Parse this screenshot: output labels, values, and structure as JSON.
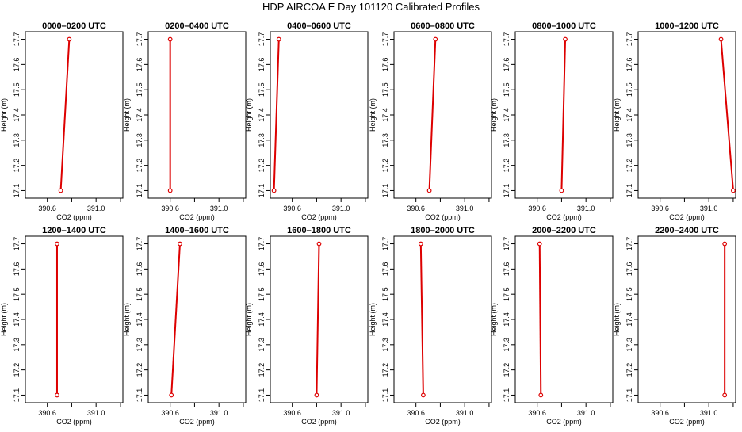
{
  "figure": {
    "title": "HDP AIRCOA E  Day 101120  Calibrated Profiles"
  },
  "colors": {
    "line": "#dd0000",
    "axis": "#000000",
    "background": "#ffffff"
  },
  "chart_data": [
    {
      "type": "line",
      "title": "0000–0200 UTC",
      "xlabel": "CO2 (ppm)",
      "ylabel": "Height (m)",
      "x_ticks": [
        "390.6",
        "391.0"
      ],
      "y_ticks": [
        "17.1",
        "17.2",
        "17.3",
        "17.4",
        "17.5",
        "17.6",
        "17.7"
      ],
      "xlim": [
        390.42,
        391.22
      ],
      "ylim": [
        17.07,
        17.73
      ],
      "grid": false,
      "x": [
        390.71,
        390.78
      ],
      "y": [
        17.1,
        17.7
      ]
    },
    {
      "type": "line",
      "title": "0200–0400 UTC",
      "xlabel": "CO2 (ppm)",
      "ylabel": "Height (m)",
      "x_ticks": [
        "390.6",
        "391.0"
      ],
      "y_ticks": [
        "17.1",
        "17.2",
        "17.3",
        "17.4",
        "17.5",
        "17.6",
        "17.7"
      ],
      "xlim": [
        390.42,
        391.22
      ],
      "ylim": [
        17.07,
        17.73
      ],
      "grid": false,
      "x": [
        390.6,
        390.6
      ],
      "y": [
        17.1,
        17.7
      ]
    },
    {
      "type": "line",
      "title": "0400–0600 UTC",
      "xlabel": "CO2 (ppm)",
      "ylabel": "Height (m)",
      "x_ticks": [
        "390.6",
        "391.0"
      ],
      "y_ticks": [
        "17.1",
        "17.2",
        "17.3",
        "17.4",
        "17.5",
        "17.6",
        "17.7"
      ],
      "xlim": [
        390.42,
        391.22
      ],
      "ylim": [
        17.07,
        17.73
      ],
      "grid": false,
      "x": [
        390.45,
        390.49
      ],
      "y": [
        17.1,
        17.7
      ]
    },
    {
      "type": "line",
      "title": "0600–0800 UTC",
      "xlabel": "CO2 (ppm)",
      "ylabel": "Height (m)",
      "x_ticks": [
        "390.6",
        "391.0"
      ],
      "y_ticks": [
        "17.1",
        "17.2",
        "17.3",
        "17.4",
        "17.5",
        "17.6",
        "17.7"
      ],
      "xlim": [
        390.42,
        391.22
      ],
      "ylim": [
        17.07,
        17.73
      ],
      "grid": false,
      "x": [
        390.71,
        390.76
      ],
      "y": [
        17.1,
        17.7
      ]
    },
    {
      "type": "line",
      "title": "0800–1000 UTC",
      "xlabel": "CO2 (ppm)",
      "ylabel": "Height (m)",
      "x_ticks": [
        "390.6",
        "391.0"
      ],
      "y_ticks": [
        "17.1",
        "17.2",
        "17.3",
        "17.4",
        "17.5",
        "17.6",
        "17.7"
      ],
      "xlim": [
        390.42,
        391.22
      ],
      "ylim": [
        17.07,
        17.73
      ],
      "grid": false,
      "x": [
        390.8,
        390.83
      ],
      "y": [
        17.1,
        17.7
      ]
    },
    {
      "type": "line",
      "title": "1000–1200 UTC",
      "xlabel": "CO2 (ppm)",
      "ylabel": "Height (m)",
      "x_ticks": [
        "390.6",
        "391.0"
      ],
      "y_ticks": [
        "17.1",
        "17.2",
        "17.3",
        "17.4",
        "17.5",
        "17.6",
        "17.7"
      ],
      "xlim": [
        390.42,
        391.22
      ],
      "ylim": [
        17.07,
        17.73
      ],
      "grid": false,
      "x": [
        391.2,
        391.1
      ],
      "y": [
        17.1,
        17.7
      ]
    },
    {
      "type": "line",
      "title": "1200–1400 UTC",
      "xlabel": "CO2 (ppm)",
      "ylabel": "Height (m)",
      "x_ticks": [
        "390.6",
        "391.0"
      ],
      "y_ticks": [
        "17.1",
        "17.2",
        "17.3",
        "17.4",
        "17.5",
        "17.6",
        "17.7"
      ],
      "xlim": [
        390.42,
        391.22
      ],
      "ylim": [
        17.07,
        17.73
      ],
      "grid": false,
      "x": [
        390.68,
        390.68
      ],
      "y": [
        17.1,
        17.7
      ]
    },
    {
      "type": "line",
      "title": "1400–1600 UTC",
      "xlabel": "CO2 (ppm)",
      "ylabel": "Height (m)",
      "x_ticks": [
        "390.6",
        "391.0"
      ],
      "y_ticks": [
        "17.1",
        "17.2",
        "17.3",
        "17.4",
        "17.5",
        "17.6",
        "17.7"
      ],
      "xlim": [
        390.42,
        391.22
      ],
      "ylim": [
        17.07,
        17.73
      ],
      "grid": false,
      "x": [
        390.61,
        390.68
      ],
      "y": [
        17.1,
        17.7
      ]
    },
    {
      "type": "line",
      "title": "1600–1800 UTC",
      "xlabel": "CO2 (ppm)",
      "ylabel": "Height (m)",
      "x_ticks": [
        "390.6",
        "391.0"
      ],
      "y_ticks": [
        "17.1",
        "17.2",
        "17.3",
        "17.4",
        "17.5",
        "17.6",
        "17.7"
      ],
      "xlim": [
        390.42,
        391.22
      ],
      "ylim": [
        17.07,
        17.73
      ],
      "grid": false,
      "x": [
        390.8,
        390.82
      ],
      "y": [
        17.1,
        17.7
      ]
    },
    {
      "type": "line",
      "title": "1800–2000 UTC",
      "xlabel": "CO2 (ppm)",
      "ylabel": "Height (m)",
      "x_ticks": [
        "390.6",
        "391.0"
      ],
      "y_ticks": [
        "17.1",
        "17.2",
        "17.3",
        "17.4",
        "17.5",
        "17.6",
        "17.7"
      ],
      "xlim": [
        390.42,
        391.22
      ],
      "ylim": [
        17.07,
        17.73
      ],
      "grid": false,
      "x": [
        390.66,
        390.64
      ],
      "y": [
        17.1,
        17.7
      ]
    },
    {
      "type": "line",
      "title": "2000–2200 UTC",
      "xlabel": "CO2 (ppm)",
      "ylabel": "Height (m)",
      "x_ticks": [
        "390.6",
        "391.0"
      ],
      "y_ticks": [
        "17.1",
        "17.2",
        "17.3",
        "17.4",
        "17.5",
        "17.6",
        "17.7"
      ],
      "xlim": [
        390.42,
        391.22
      ],
      "ylim": [
        17.07,
        17.73
      ],
      "grid": false,
      "x": [
        390.63,
        390.62
      ],
      "y": [
        17.1,
        17.7
      ]
    },
    {
      "type": "line",
      "title": "2200–2400 UTC",
      "xlabel": "CO2 (ppm)",
      "ylabel": "Height (m)",
      "x_ticks": [
        "390.6",
        "391.0"
      ],
      "y_ticks": [
        "17.1",
        "17.2",
        "17.3",
        "17.4",
        "17.5",
        "17.6",
        "17.7"
      ],
      "xlim": [
        390.42,
        391.22
      ],
      "ylim": [
        17.07,
        17.73
      ],
      "grid": false,
      "x": [
        391.13,
        391.13
      ],
      "y": [
        17.1,
        17.7
      ]
    }
  ]
}
